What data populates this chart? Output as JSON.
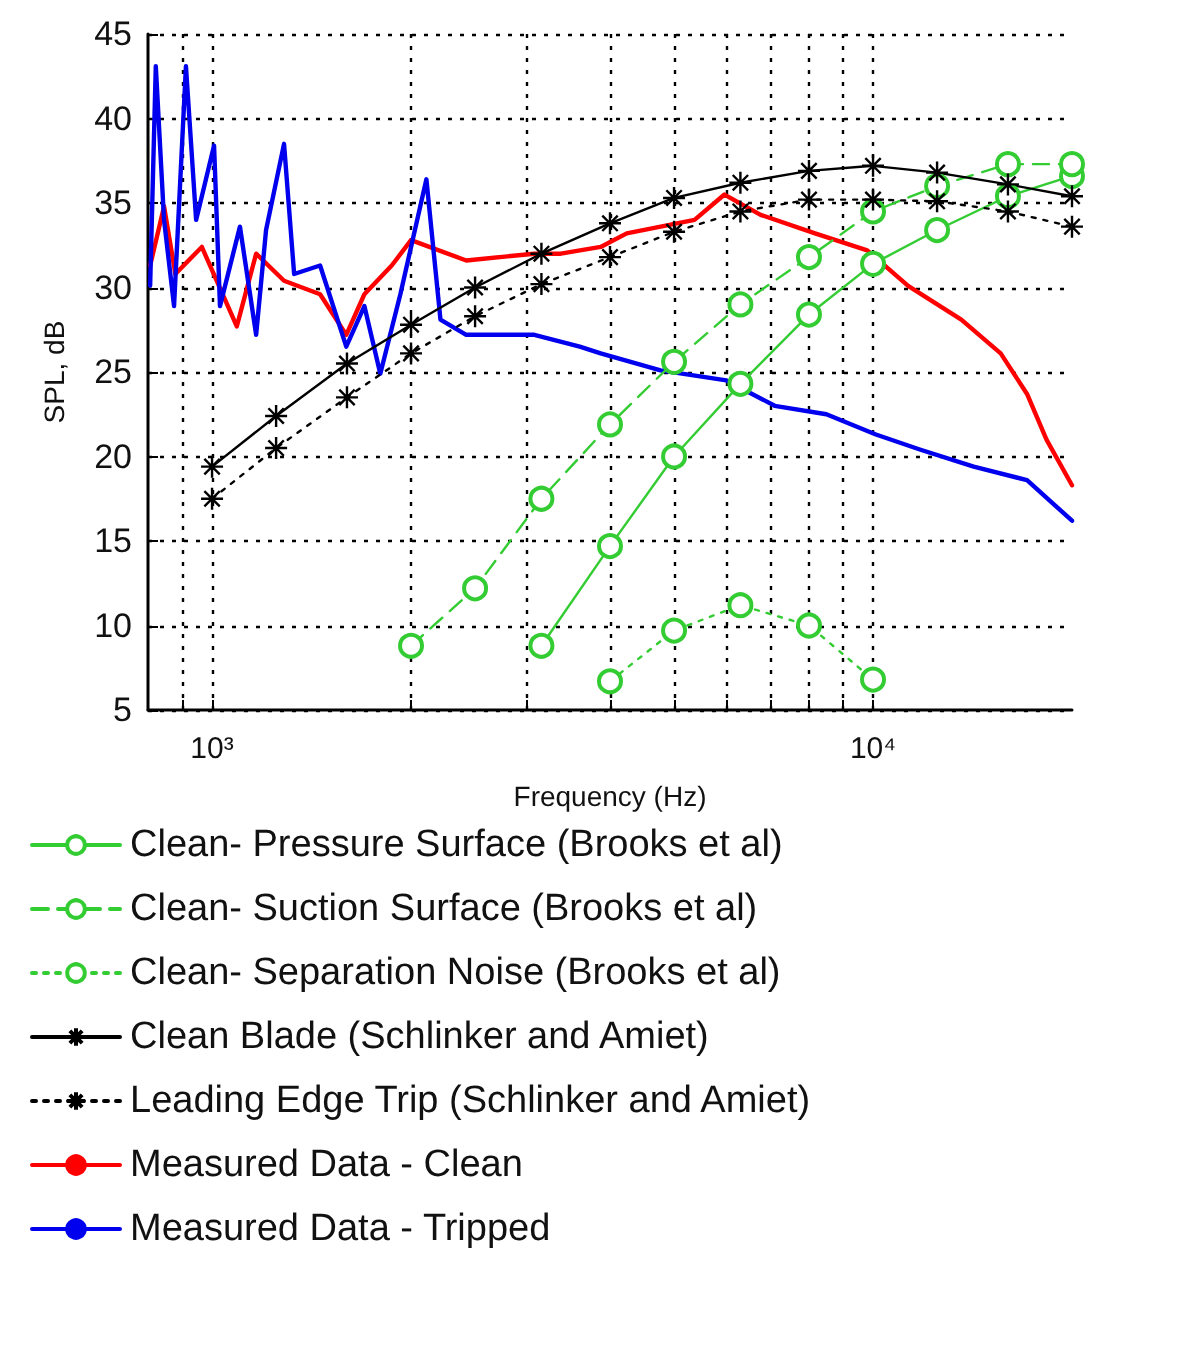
{
  "chart_data": {
    "type": "line",
    "xlabel": "Frequency (Hz)",
    "ylabel": "SPL, dB",
    "log": "x",
    "xlim": [
      800,
      20000
    ],
    "xticks": [
      {
        "value": 900,
        "label": null
      },
      {
        "value": 1000,
        "label": "10³"
      },
      {
        "value": 2000,
        "label": null
      },
      {
        "value": 3000,
        "label": null
      },
      {
        "value": 4000,
        "label": null
      },
      {
        "value": 5000,
        "label": null
      },
      {
        "value": 6000,
        "label": null
      },
      {
        "value": 7000,
        "label": null
      },
      {
        "value": 8000,
        "label": null
      },
      {
        "value": 9000,
        "label": null
      },
      {
        "value": 10000,
        "label": "10⁴"
      }
    ],
    "ylim": [
      5,
      45
    ],
    "yticks": [
      5,
      10,
      15,
      20,
      25,
      30,
      35,
      40,
      45
    ],
    "grid": true,
    "legend": "bottom left",
    "series": [
      {
        "name": "Clean- Pressure Surface (Brooks et al)",
        "color": "#33cc33",
        "marker": "circle",
        "line_style": "solid",
        "x": [
          3150,
          4000,
          5000,
          6300,
          8000,
          10000,
          12500,
          16000,
          20000
        ],
        "values": [
          8.8,
          14.7,
          20.0,
          24.3,
          28.4,
          31.4,
          33.4,
          35.4,
          36.6
        ]
      },
      {
        "name": "Clean- Suction Surface (Brooks et al)",
        "color": "#33cc33",
        "marker": "circle",
        "line_style": "dashed",
        "x": [
          2000,
          2500,
          3150,
          4000,
          5000,
          6300,
          8000,
          10000,
          12500,
          16000,
          20000
        ],
        "values": [
          8.8,
          12.2,
          17.5,
          21.9,
          25.6,
          29.0,
          31.8,
          34.5,
          36.0,
          37.3,
          37.3
        ]
      },
      {
        "name": "Clean- Separation Noise (Brooks et al)",
        "color": "#33cc33",
        "marker": "circle",
        "line_style": "dotted",
        "x": [
          4000,
          5000,
          6300,
          8000,
          10000
        ],
        "values": [
          6.7,
          9.7,
          11.2,
          10.0,
          6.8
        ]
      },
      {
        "name": "Clean Blade (Schlinker and Amiet)",
        "color": "#000000",
        "marker": "cross",
        "line_style": "solid",
        "x": [
          1000,
          1250,
          1600,
          2000,
          2500,
          3150,
          4000,
          5000,
          6300,
          8000,
          10000,
          12500,
          16000,
          20000
        ],
        "values": [
          19.4,
          22.4,
          25.5,
          27.8,
          30.0,
          32.0,
          33.8,
          35.3,
          36.2,
          36.9,
          37.2,
          36.8,
          36.1,
          35.4
        ]
      },
      {
        "name": "Leading Edge Trip (Schlinker and Amiet)",
        "color": "#000000",
        "marker": "cross",
        "line_style": "dotted",
        "x": [
          1000,
          1250,
          1600,
          2000,
          2500,
          3150,
          4000,
          5000,
          6300,
          8000,
          10000,
          12500,
          16000,
          20000
        ],
        "values": [
          17.5,
          20.5,
          23.5,
          26.1,
          28.3,
          30.2,
          31.8,
          33.3,
          34.5,
          35.2,
          35.2,
          35.1,
          34.5,
          33.6
        ]
      },
      {
        "name": "Measured Data - Clean",
        "color": "#ff0000",
        "marker": "none",
        "line_style": "solid",
        "x": [
          806,
          846,
          880,
          965,
          1090,
          1166,
          1285,
          1457,
          1596,
          1700,
          1870,
          2000,
          2424,
          3073,
          3370,
          3872,
          4240,
          5370,
          5960,
          6760,
          8170,
          9800,
          11300,
          13600,
          15600,
          17100,
          18300,
          20000
        ],
        "values": [
          31.3,
          34.8,
          30.8,
          32.4,
          27.7,
          32.0,
          30.4,
          29.6,
          27.2,
          29.6,
          31.3,
          32.8,
          31.6,
          32.0,
          32.0,
          32.4,
          33.2,
          34.0,
          35.5,
          34.3,
          33.2,
          32.2,
          30.1,
          28.1,
          26.1,
          23.7,
          21.0,
          18.3
        ]
      },
      {
        "name": "Measured Data - Tripped",
        "color": "#0000ee",
        "marker": "none",
        "line_style": "solid",
        "x": [
          806,
          822,
          846,
          876,
          913,
          946,
          1007,
          1028,
          1102,
          1166,
          1207,
          1285,
          1331,
          1457,
          1596,
          1700,
          1797,
          1927,
          2110,
          2216,
          2424,
          3073,
          3600,
          3872,
          4770,
          6000,
          7100,
          8500,
          10100,
          11800,
          14200,
          17100,
          20000
        ],
        "values": [
          30.1,
          43.1,
          34.0,
          28.9,
          43.1,
          34.0,
          38.4,
          28.9,
          33.6,
          27.2,
          33.4,
          38.5,
          30.8,
          31.3,
          26.5,
          28.9,
          24.9,
          29.6,
          36.4,
          28.1,
          27.2,
          27.2,
          26.5,
          26.1,
          25.1,
          24.5,
          23.0,
          22.5,
          21.3,
          20.4,
          19.4,
          18.6,
          16.2
        ]
      }
    ]
  }
}
